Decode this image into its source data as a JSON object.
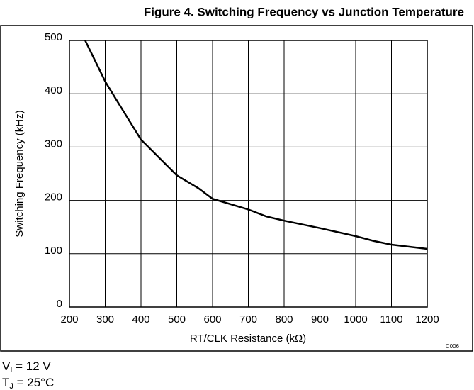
{
  "chart_data": {
    "type": "line",
    "title": "Figure 4. Switching Frequency vs Junction Temperature",
    "x_label": "RT/CLK Resistance (kΩ)",
    "y_label": "Switching Frequency (kHz)",
    "code": "C006",
    "notes": [
      {
        "main": "V",
        "sub": "I",
        "rest": " = 12 V"
      },
      {
        "main": "T",
        "sub": "J",
        "rest": " = 25°C"
      }
    ],
    "x": [
      244,
      300,
      330,
      400,
      500,
      560,
      600,
      700,
      750,
      800,
      900,
      1000,
      1050,
      1100,
      1200
    ],
    "series": [
      {
        "name": "Switching Frequency",
        "color": "#000000",
        "values": [
          500,
          423,
          390,
          314,
          247,
          223,
          203,
          183,
          170,
          162,
          148,
          133,
          124,
          117,
          109
        ]
      }
    ],
    "xlim": [
      200,
      1200
    ],
    "xticks": [
      200,
      300,
      400,
      500,
      600,
      700,
      800,
      900,
      1000,
      1100,
      1200
    ],
    "ylim": [
      0,
      500
    ],
    "yticks": [
      0,
      100,
      200,
      300,
      400,
      500
    ],
    "grid": true
  }
}
